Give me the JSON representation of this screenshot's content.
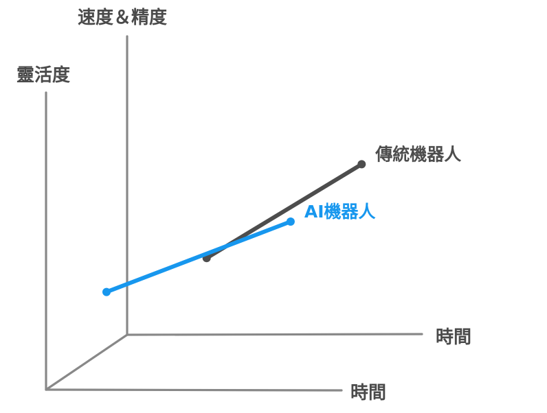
{
  "chart_data": {
    "type": "line",
    "axes": {
      "left_vertical_label": "靈活度",
      "back_vertical_label": "速度＆精度",
      "back_horizontal_label": "時間",
      "front_horizontal_label": "時間"
    },
    "series": [
      {
        "name": "傳統機器人",
        "color": "#4d4d4d",
        "start": [
          0.31,
          0.26
        ],
        "end": [
          0.79,
          0.62
        ]
      },
      {
        "name": "AI機器人",
        "color": "#1797ee",
        "start": [
          0.0,
          0.13
        ],
        "end": [
          0.57,
          0.4
        ]
      }
    ]
  }
}
